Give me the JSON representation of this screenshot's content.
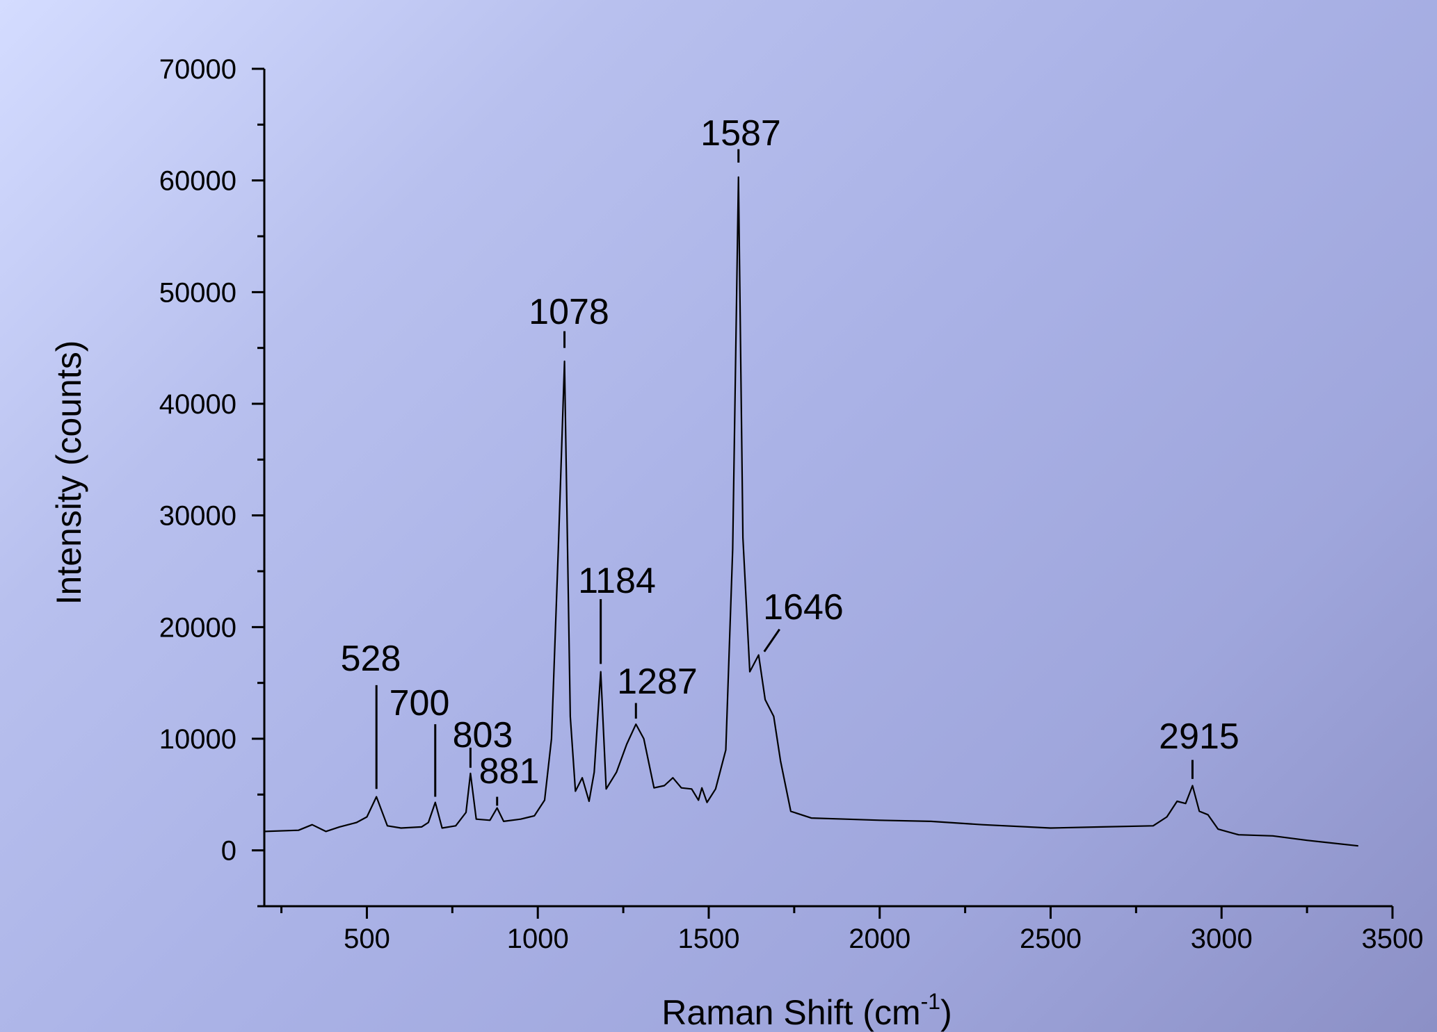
{
  "chart_data": {
    "type": "line",
    "title": "",
    "xlabel": "Raman Shift (cm",
    "xlabel_sup": "-1",
    "xlabel_close": ")",
    "ylabel": "Intensity (counts)",
    "xlim": [
      200,
      3500
    ],
    "ylim": [
      -5000,
      70000
    ],
    "xticks": [
      500,
      1000,
      1500,
      2000,
      2500,
      3000,
      3500
    ],
    "xtick_labels": [
      "500",
      "1000",
      "1500",
      "2000",
      "2500",
      "3000",
      "3500"
    ],
    "yticks": [
      0,
      10000,
      20000,
      30000,
      40000,
      50000,
      60000,
      70000
    ],
    "ytick_labels": [
      "0",
      "10000",
      "20000",
      "30000",
      "40000",
      "50000",
      "60000",
      "70000"
    ],
    "grid": false,
    "line_color": "#000000",
    "series": [
      {
        "x": [
          200,
          300,
          340,
          380,
          420,
          470,
          500,
          528,
          560,
          600,
          660,
          680,
          700,
          720,
          760,
          790,
          803,
          820,
          860,
          881,
          900,
          950,
          990,
          1020,
          1040,
          1060,
          1078,
          1095,
          1110,
          1130,
          1150,
          1165,
          1184,
          1200,
          1230,
          1260,
          1287,
          1310,
          1340,
          1370,
          1395,
          1420,
          1450,
          1470,
          1480,
          1495,
          1520,
          1550,
          1570,
          1587,
          1600,
          1620,
          1646,
          1665,
          1690,
          1710,
          1740,
          1800,
          1900,
          2000,
          2150,
          2300,
          2500,
          2650,
          2800,
          2840,
          2870,
          2895,
          2915,
          2935,
          2960,
          2990,
          3050,
          3150,
          3250,
          3400
        ],
        "y": [
          1700,
          1800,
          2300,
          1700,
          2100,
          2500,
          3000,
          4800,
          2200,
          2000,
          2100,
          2500,
          4300,
          2000,
          2200,
          3400,
          6900,
          2800,
          2700,
          3800,
          2600,
          2800,
          3100,
          4500,
          10000,
          27000,
          43800,
          12000,
          5300,
          6500,
          4400,
          7000,
          16000,
          5500,
          7000,
          9500,
          11300,
          10000,
          5600,
          5800,
          6500,
          5600,
          5500,
          4500,
          5600,
          4300,
          5500,
          9000,
          27000,
          60300,
          28000,
          16000,
          17500,
          13500,
          12000,
          8000,
          3500,
          2900,
          2800,
          2700,
          2600,
          2300,
          2000,
          2100,
          2200,
          3000,
          4400,
          4200,
          5800,
          3500,
          3200,
          1900,
          1400,
          1300,
          900,
          400
        ]
      }
    ],
    "annotations": [
      {
        "label": "528",
        "x": 528,
        "y_top": 14800,
        "y_bottom": 5500
      },
      {
        "label": "700",
        "x": 700,
        "y_top": 11300,
        "y_bottom": 4800
      },
      {
        "label": "803",
        "x": 803,
        "y_top": 9200,
        "y_bottom": 7400
      },
      {
        "label": "881",
        "x": 881,
        "y_top": 4800,
        "y_bottom": 4000
      },
      {
        "label": "1078",
        "x": 1078,
        "y_top": 46500,
        "y_bottom": 45000
      },
      {
        "label": "1184",
        "x": 1184,
        "y_top": 22500,
        "y_bottom": 16700
      },
      {
        "label": "1287",
        "x": 1287,
        "y_top": 13200,
        "y_bottom": 11800
      },
      {
        "label": "1587",
        "x": 1587,
        "y_top": 62800,
        "y_bottom": 61600
      },
      {
        "label": "1646",
        "x": 1646,
        "y_top": 19800,
        "y_bottom": 17800
      },
      {
        "label": "2915",
        "x": 2915,
        "y_top": 8100,
        "y_bottom": 6400
      }
    ]
  }
}
